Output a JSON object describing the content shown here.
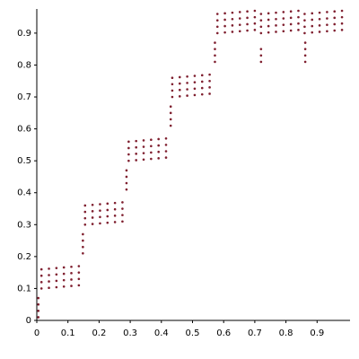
{
  "chart_data": {
    "type": "scatter",
    "color": "#7f1f2f",
    "xlim": [
      0,
      1.0
    ],
    "ylim": [
      0,
      0.97
    ],
    "xticks": [
      0,
      0.1,
      0.2,
      0.3,
      0.4,
      0.5,
      0.6,
      0.7,
      0.8,
      0.9
    ],
    "yticks": [
      0,
      0.1,
      0.2,
      0.3,
      0.4,
      0.5,
      0.6,
      0.7,
      0.8,
      0.9
    ],
    "grid": false,
    "x": [
      0.015,
      0.039,
      0.063,
      0.087,
      0.111,
      0.135,
      0.015,
      0.039,
      0.063,
      0.087,
      0.111,
      0.135,
      0.015,
      0.039,
      0.063,
      0.087,
      0.111,
      0.135,
      0.015,
      0.039,
      0.063,
      0.087,
      0.111,
      0.135,
      0.155,
      0.179,
      0.203,
      0.227,
      0.251,
      0.275,
      0.155,
      0.179,
      0.203,
      0.227,
      0.251,
      0.275,
      0.155,
      0.179,
      0.203,
      0.227,
      0.251,
      0.275,
      0.155,
      0.179,
      0.203,
      0.227,
      0.251,
      0.275,
      0.295,
      0.319,
      0.343,
      0.367,
      0.391,
      0.415,
      0.295,
      0.319,
      0.343,
      0.367,
      0.391,
      0.415,
      0.295,
      0.319,
      0.343,
      0.367,
      0.391,
      0.415,
      0.295,
      0.319,
      0.343,
      0.367,
      0.391,
      0.415,
      0.435,
      0.459,
      0.483,
      0.507,
      0.531,
      0.555,
      0.435,
      0.459,
      0.483,
      0.507,
      0.531,
      0.555,
      0.435,
      0.459,
      0.483,
      0.507,
      0.531,
      0.555,
      0.435,
      0.459,
      0.483,
      0.507,
      0.531,
      0.555,
      0.58,
      0.604,
      0.628,
      0.652,
      0.676,
      0.7,
      0.58,
      0.604,
      0.628,
      0.652,
      0.676,
      0.7,
      0.58,
      0.604,
      0.628,
      0.652,
      0.676,
      0.7,
      0.58,
      0.604,
      0.628,
      0.652,
      0.676,
      0.7,
      0.72,
      0.744,
      0.768,
      0.792,
      0.816,
      0.84,
      0.72,
      0.744,
      0.768,
      0.792,
      0.816,
      0.84,
      0.72,
      0.744,
      0.768,
      0.792,
      0.816,
      0.84,
      0.72,
      0.744,
      0.768,
      0.792,
      0.816,
      0.84,
      0.86,
      0.884,
      0.908,
      0.932,
      0.956,
      0.98,
      0.86,
      0.884,
      0.908,
      0.932,
      0.956,
      0.98,
      0.86,
      0.884,
      0.908,
      0.932,
      0.956,
      0.98,
      0.86,
      0.884,
      0.908,
      0.932,
      0.956,
      0.98,
      0.005,
      0.005,
      0.005,
      0.005,
      0.148,
      0.148,
      0.148,
      0.148,
      0.288,
      0.288,
      0.288,
      0.288,
      0.43,
      0.43,
      0.43,
      0.43,
      0.572,
      0.572,
      0.572,
      0.572,
      0.72,
      0.72,
      0.72,
      0.862,
      0.862,
      0.862,
      0.862
    ],
    "y": [
      0.1,
      0.102,
      0.104,
      0.106,
      0.108,
      0.11,
      0.12,
      0.122,
      0.124,
      0.126,
      0.128,
      0.13,
      0.14,
      0.142,
      0.144,
      0.146,
      0.148,
      0.15,
      0.16,
      0.162,
      0.164,
      0.166,
      0.168,
      0.17,
      0.3,
      0.302,
      0.304,
      0.306,
      0.308,
      0.31,
      0.32,
      0.322,
      0.324,
      0.326,
      0.328,
      0.33,
      0.34,
      0.342,
      0.344,
      0.346,
      0.348,
      0.35,
      0.36,
      0.362,
      0.364,
      0.366,
      0.368,
      0.37,
      0.5,
      0.502,
      0.504,
      0.506,
      0.508,
      0.51,
      0.52,
      0.522,
      0.524,
      0.526,
      0.528,
      0.53,
      0.54,
      0.542,
      0.544,
      0.546,
      0.548,
      0.55,
      0.56,
      0.562,
      0.564,
      0.566,
      0.568,
      0.57,
      0.7,
      0.702,
      0.704,
      0.706,
      0.708,
      0.71,
      0.72,
      0.722,
      0.724,
      0.726,
      0.728,
      0.73,
      0.74,
      0.742,
      0.744,
      0.746,
      0.748,
      0.75,
      0.76,
      0.762,
      0.764,
      0.766,
      0.768,
      0.77,
      0.9,
      0.902,
      0.904,
      0.906,
      0.908,
      0.91,
      0.92,
      0.922,
      0.924,
      0.926,
      0.928,
      0.93,
      0.94,
      0.942,
      0.944,
      0.946,
      0.948,
      0.95,
      0.96,
      0.962,
      0.964,
      0.966,
      0.968,
      0.97,
      0.9,
      0.902,
      0.904,
      0.906,
      0.908,
      0.91,
      0.92,
      0.922,
      0.924,
      0.926,
      0.928,
      0.93,
      0.94,
      0.942,
      0.944,
      0.946,
      0.948,
      0.95,
      0.96,
      0.962,
      0.964,
      0.966,
      0.968,
      0.97,
      0.9,
      0.902,
      0.904,
      0.906,
      0.908,
      0.91,
      0.92,
      0.922,
      0.924,
      0.926,
      0.928,
      0.93,
      0.94,
      0.942,
      0.944,
      0.946,
      0.948,
      0.95,
      0.96,
      0.962,
      0.964,
      0.966,
      0.968,
      0.97,
      0.01,
      0.03,
      0.05,
      0.07,
      0.21,
      0.23,
      0.25,
      0.27,
      0.41,
      0.43,
      0.45,
      0.47,
      0.61,
      0.63,
      0.65,
      0.67,
      0.81,
      0.83,
      0.85,
      0.87,
      0.81,
      0.83,
      0.85,
      0.81,
      0.83,
      0.85,
      0.87
    ]
  }
}
